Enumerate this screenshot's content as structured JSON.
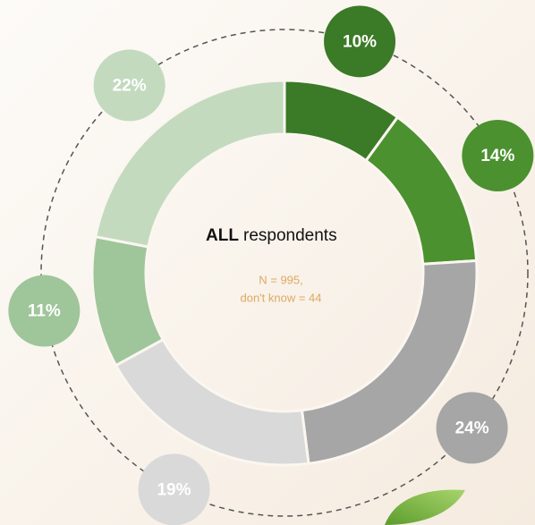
{
  "chart_data": {
    "type": "donut",
    "center_label_bold": "ALL",
    "center_label": "respondents",
    "notes": [
      "N = 995,",
      "don't know = 44"
    ],
    "values": [
      10,
      14,
      24,
      19,
      11,
      22
    ],
    "value_labels": [
      "10%",
      "14%",
      "24%",
      "19%",
      "11%",
      "22%"
    ],
    "colors": [
      "#3b7a27",
      "#4b912f",
      "#a6a6a6",
      "#d9d9d9",
      "#9fc59a",
      "#c3dabf"
    ]
  }
}
